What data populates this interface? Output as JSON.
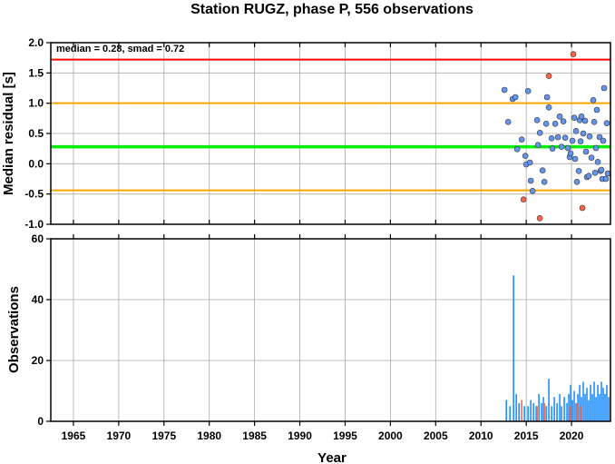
{
  "chart_data": [
    {
      "type": "scatter",
      "title": "Station RUGZ, phase P, 556 observations",
      "ylabel": "Median residual [s]",
      "annotation": "median = 0.28, smad = 0.72",
      "xlim": [
        1962.5,
        2024.3
      ],
      "ylim": [
        -1.0,
        2.0
      ],
      "y_ticks": [
        "2.0",
        "1.5",
        "1.0",
        "0.5",
        "0.0",
        "-0.5",
        "-1.0"
      ],
      "y_tick_values": [
        2.0,
        1.5,
        1.0,
        0.5,
        0.0,
        -0.5,
        -1.0
      ],
      "grid": true,
      "reference_lines": [
        {
          "y": 1.72,
          "color": "#ff0000"
        },
        {
          "y": 1.0,
          "color": "#ffa500"
        },
        {
          "y": 0.28,
          "color": "#00ee00"
        },
        {
          "y": -0.44,
          "color": "#ffa500"
        }
      ],
      "series": [
        {
          "color": "#6495ed",
          "points": [
            [
              2012.6,
              1.22
            ],
            [
              2013.0,
              0.69
            ],
            [
              2013.5,
              1.07
            ],
            [
              2013.8,
              1.1
            ],
            [
              2014.0,
              0.24
            ],
            [
              2014.5,
              0.4
            ],
            [
              2014.9,
              0.13
            ],
            [
              2015.2,
              1.2
            ],
            [
              2015.0,
              -0.01
            ],
            [
              2015.4,
              0.02
            ],
            [
              2015.5,
              -0.28
            ],
            [
              2015.7,
              -0.45
            ],
            [
              2016.2,
              0.72
            ],
            [
              2016.3,
              0.31
            ],
            [
              2016.5,
              0.51
            ],
            [
              2016.8,
              -0.11
            ],
            [
              2017.0,
              -0.3
            ],
            [
              2017.2,
              0.66
            ],
            [
              2017.3,
              1.1
            ],
            [
              2017.5,
              0.93
            ],
            [
              2017.8,
              0.42
            ],
            [
              2017.9,
              0.25
            ],
            [
              2018.2,
              0.66
            ],
            [
              2018.5,
              0.44
            ],
            [
              2018.7,
              0.78
            ],
            [
              2018.9,
              0.28
            ],
            [
              2019.1,
              0.7
            ],
            [
              2019.3,
              0.43
            ],
            [
              2019.6,
              0.26
            ],
            [
              2019.8,
              0.11
            ],
            [
              2019.9,
              0.17
            ],
            [
              2020.1,
              0.38
            ],
            [
              2020.3,
              0.76
            ],
            [
              2020.4,
              0.08
            ],
            [
              2020.5,
              0.54
            ],
            [
              2020.6,
              -0.3
            ],
            [
              2020.8,
              -0.12
            ],
            [
              2020.9,
              0.72
            ],
            [
              2021.0,
              0.37
            ],
            [
              2021.1,
              0.78
            ],
            [
              2021.3,
              0.5
            ],
            [
              2021.5,
              0.71
            ],
            [
              2021.6,
              0.2
            ],
            [
              2021.7,
              -0.22
            ],
            [
              2021.9,
              -0.2
            ],
            [
              2022.0,
              0.45
            ],
            [
              2022.2,
              0.1
            ],
            [
              2022.4,
              1.05
            ],
            [
              2022.5,
              0.69
            ],
            [
              2022.6,
              -0.15
            ],
            [
              2022.7,
              0.26
            ],
            [
              2022.8,
              0.89
            ],
            [
              2022.9,
              0.03
            ],
            [
              2023.1,
              0.44
            ],
            [
              2023.2,
              -0.12
            ],
            [
              2023.3,
              -0.1
            ],
            [
              2023.4,
              -0.25
            ],
            [
              2023.5,
              0.38
            ],
            [
              2023.6,
              1.25
            ],
            [
              2023.8,
              -0.25
            ],
            [
              2023.9,
              0.67
            ],
            [
              2024.0,
              -0.16
            ]
          ]
        },
        {
          "color": "#ff6347",
          "points": [
            [
              2014.7,
              -0.59
            ],
            [
              2016.5,
              -0.9
            ],
            [
              2017.5,
              1.45
            ],
            [
              2020.2,
              1.81
            ],
            [
              2021.2,
              -0.73
            ]
          ]
        }
      ]
    },
    {
      "type": "bar",
      "ylabel": "Observations",
      "xlabel": "Year",
      "xlim": [
        1962.5,
        2024.3
      ],
      "ylim": [
        0,
        60
      ],
      "x_ticks": [
        "1965",
        "1970",
        "1975",
        "1980",
        "1985",
        "1990",
        "1995",
        "2000",
        "2005",
        "2010",
        "2015",
        "2020"
      ],
      "x_tick_values": [
        1965,
        1970,
        1975,
        1980,
        1985,
        1990,
        1995,
        2000,
        2005,
        2010,
        2015,
        2020
      ],
      "y_ticks": [
        "60",
        "40",
        "20",
        "0"
      ],
      "y_tick_values": [
        60,
        40,
        20,
        0
      ],
      "grid": true,
      "series": [
        {
          "color": "#1e90ff",
          "bars": [
            [
              2012.8,
              7
            ],
            [
              2013.2,
              5
            ],
            [
              2013.6,
              48
            ],
            [
              2013.9,
              9
            ],
            [
              2014.2,
              6
            ],
            [
              2014.8,
              5
            ],
            [
              2015.2,
              5
            ],
            [
              2015.5,
              7
            ],
            [
              2015.8,
              6
            ],
            [
              2016.1,
              5
            ],
            [
              2016.4,
              9
            ],
            [
              2016.7,
              6
            ],
            [
              2016.9,
              8
            ],
            [
              2017.2,
              5
            ],
            [
              2017.5,
              14
            ],
            [
              2017.8,
              5
            ],
            [
              2018.1,
              8
            ],
            [
              2018.4,
              6
            ],
            [
              2018.7,
              9
            ],
            [
              2018.9,
              5
            ],
            [
              2019.2,
              8
            ],
            [
              2019.5,
              6
            ],
            [
              2019.7,
              9
            ],
            [
              2019.9,
              12
            ],
            [
              2020.1,
              7
            ],
            [
              2020.3,
              10
            ],
            [
              2020.5,
              6
            ],
            [
              2020.7,
              9
            ],
            [
              2020.9,
              12
            ],
            [
              2021.1,
              8
            ],
            [
              2021.3,
              13
            ],
            [
              2021.5,
              9
            ],
            [
              2021.7,
              11
            ],
            [
              2021.9,
              7
            ],
            [
              2022.1,
              12
            ],
            [
              2022.3,
              9
            ],
            [
              2022.5,
              13
            ],
            [
              2022.7,
              8
            ],
            [
              2022.9,
              12
            ],
            [
              2023.1,
              9
            ],
            [
              2023.3,
              13
            ],
            [
              2023.5,
              11
            ],
            [
              2023.7,
              9
            ],
            [
              2023.9,
              12
            ],
            [
              2024.1,
              8
            ]
          ]
        },
        {
          "color": "#ff6347",
          "bars": [
            [
              2014.5,
              7
            ],
            [
              2016.2,
              5
            ],
            [
              2017.0,
              6
            ],
            [
              2019.8,
              5
            ],
            [
              2020.6,
              6
            ],
            [
              2021.0,
              5
            ]
          ]
        }
      ]
    }
  ]
}
